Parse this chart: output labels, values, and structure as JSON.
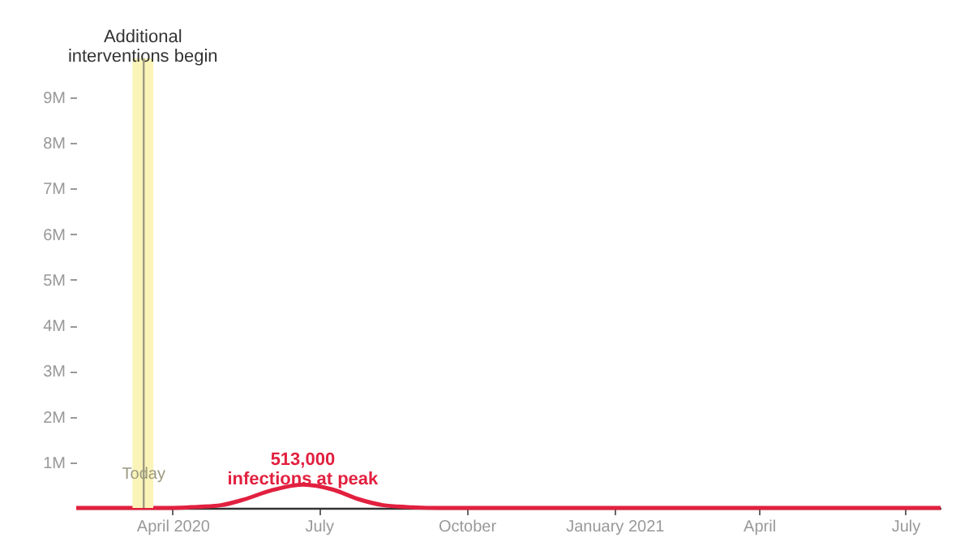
{
  "chart_data": {
    "type": "line",
    "x": [
      "2020-02-01",
      "2020-03-01",
      "2020-04-01",
      "2020-04-15",
      "2020-05-01",
      "2020-05-15",
      "2020-06-01",
      "2020-06-21",
      "2020-07-10",
      "2020-07-25",
      "2020-08-10",
      "2020-08-25",
      "2020-09-15",
      "2020-10-15",
      "2021-01-01",
      "2021-04-01",
      "2021-07-23"
    ],
    "series": [
      {
        "color": "#e2203f",
        "values": [
          0,
          0,
          0,
          20000,
          60000,
          180000,
          380000,
          513000,
          400000,
          200000,
          60000,
          20000,
          0,
          0,
          0,
          0,
          0
        ]
      }
    ],
    "xlim": [
      "2020-02-01",
      "2021-07-23"
    ],
    "xticks": [
      {
        "value": "2020-04-01",
        "label": "April 2020"
      },
      {
        "value": "2020-07-01",
        "label": "July"
      },
      {
        "value": "2020-10-01",
        "label": "October"
      },
      {
        "value": "2021-01-01",
        "label": "January 2021"
      },
      {
        "value": "2021-04-01",
        "label": "April"
      },
      {
        "value": "2021-07-01",
        "label": "July"
      }
    ],
    "ylim": [
      0,
      9850000
    ],
    "yticks": [
      {
        "value": 1000000,
        "label": "1M"
      },
      {
        "value": 2000000,
        "label": "2M"
      },
      {
        "value": 3000000,
        "label": "3M"
      },
      {
        "value": 4000000,
        "label": "4M"
      },
      {
        "value": 5000000,
        "label": "5M"
      },
      {
        "value": 6000000,
        "label": "6M"
      },
      {
        "value": 7000000,
        "label": "7M"
      },
      {
        "value": 8000000,
        "label": "8M"
      },
      {
        "value": 9000000,
        "label": "9M"
      }
    ],
    "bands": [
      {
        "axis": "x",
        "from": "2020-03-07",
        "to": "2020-03-20",
        "label": "Additional interventions begin",
        "color": "#fbf4b8"
      }
    ],
    "ref_lines": [
      {
        "axis": "x",
        "value": "2020-03-14",
        "label": "Today",
        "color": "#9b9a80"
      }
    ],
    "annotations": [
      {
        "text": "513,000 infections at peak",
        "x": "2020-06-21",
        "y": 513000
      }
    ],
    "grid": false,
    "line_style": "solid"
  }
}
